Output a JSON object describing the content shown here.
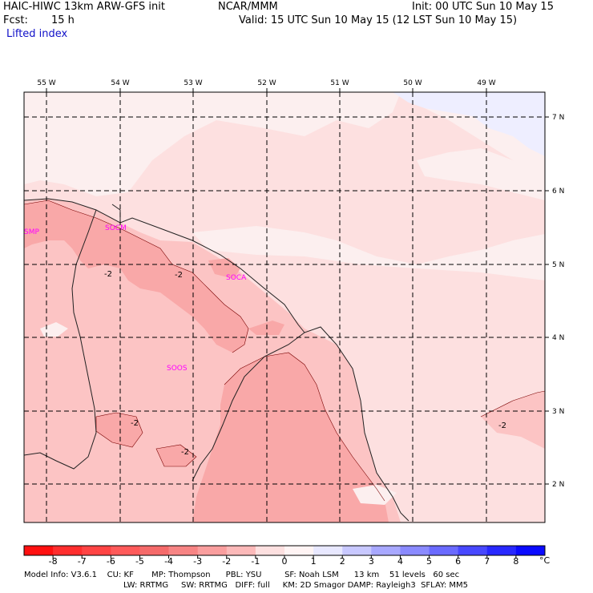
{
  "header": {
    "model_line": "HAIC-HIWC 13km ARW-GFS init",
    "org": "NCAR/MMM",
    "init": "Init: 00 UTC Sun 10 May 15",
    "fcst_label": "Fcst:",
    "fcst_value": "15 h",
    "valid": "Valid: 15 UTC Sun 10 May 15 (12 LST Sun 10 May 15)",
    "field": "Lifted index"
  },
  "axes": {
    "lon_labels": [
      "55 W",
      "54 W",
      "53 W",
      "52 W",
      "51 W",
      "50 W",
      "49 W"
    ],
    "lat_labels": [
      "7 N",
      "6 N",
      "5 N",
      "4 N",
      "3 N",
      "2 N"
    ]
  },
  "stations": [
    "SMP",
    "SOCM",
    "SOCA",
    "SOOS"
  ],
  "contour_labels": [
    "-2",
    "-2",
    "-2",
    "-2",
    "-2"
  ],
  "colorbar": {
    "ticks": [
      "-8",
      "-7",
      "-6",
      "-5",
      "-4",
      "-3",
      "-2",
      "-1",
      "0",
      "1",
      "2",
      "3",
      "4",
      "5",
      "6",
      "7",
      "8"
    ],
    "unit": "°C",
    "colors": [
      "#ff1010",
      "#ff2e2e",
      "#ff4444",
      "#ff5a5a",
      "#f56a6a",
      "#f78484",
      "#fa9e9e",
      "#fcb9b9",
      "#fde0e0",
      "#fff4f4",
      "#e8e8ff",
      "#c8c8ff",
      "#a8a8ff",
      "#8a8aff",
      "#6a6aff",
      "#4848ff",
      "#2828ff",
      "#0a0aff"
    ]
  },
  "colors": {
    "shade_base": "#fde0e0",
    "shade_light": "#fcefef",
    "shade_minus2": "#fcc4c4",
    "shade_minus3": "#f9a8a8",
    "shade_blue": "#eeeeff",
    "label_magenta": "#ff00ff",
    "header_blue": "#1010c8"
  },
  "footer": {
    "line1": "Model Info: V3.6.1    CU: KF       MP: Thompson      PBL: YSU         SF: Noah LSM      13 km    51 levels   60 sec",
    "line2": "LW: RRTMG     SW: RRTMG   DIFF: full     KM: 2D Smagor DAMP: Rayleigh3  SFLAY: MM5"
  }
}
